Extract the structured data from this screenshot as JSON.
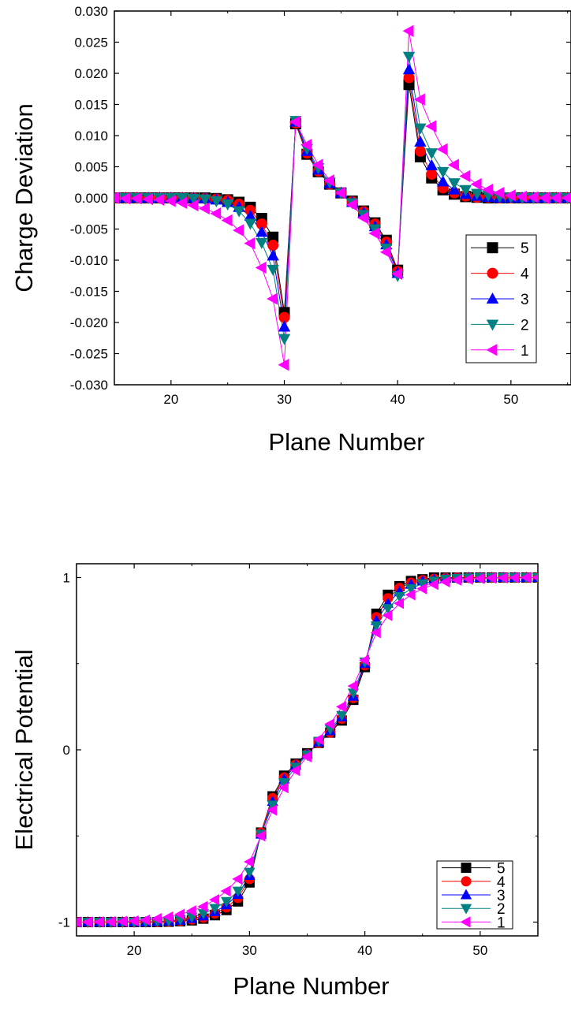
{
  "chart_data": [
    {
      "type": "line",
      "xlabel": "Plane Number",
      "ylabel": "Charge Deviation",
      "xlim": [
        15,
        55
      ],
      "ylim": [
        -0.03,
        0.03
      ],
      "xticks": [
        20,
        30,
        40,
        50
      ],
      "xtick_labels": [
        "20",
        "30",
        "40",
        "50"
      ],
      "yticks": [
        -0.03,
        -0.025,
        -0.02,
        -0.015,
        -0.01,
        -0.005,
        0,
        0.005,
        0.01,
        0.015,
        0.02,
        0.025,
        0.03
      ],
      "ytick_labels": [
        "-0.030",
        "-0.025",
        "-0.020",
        "-0.015",
        "-0.010",
        "-0.005",
        "0.000",
        "0.005",
        "0.010",
        "0.015",
        "0.020",
        "0.025",
        "0.030"
      ],
      "grid": false,
      "legend_position": "bottom-right",
      "x": [
        15,
        16,
        17,
        18,
        19,
        20,
        21,
        22,
        23,
        24,
        25,
        26,
        27,
        28,
        29,
        30,
        31,
        32,
        33,
        34,
        35,
        36,
        37,
        38,
        39,
        40,
        41,
        42,
        43,
        44,
        45,
        46,
        47,
        48,
        49,
        50,
        51,
        52,
        53,
        54,
        55
      ],
      "series": [
        {
          "name": "5",
          "color": "#000000",
          "marker": "square",
          "values": [
            0,
            0,
            0,
            0,
            0,
            0,
            0,
            0,
            0,
            -0.0001,
            -0.0003,
            -0.0007,
            -0.0015,
            -0.0033,
            -0.0063,
            -0.0184,
            0.0119,
            0.007,
            0.0042,
            0.0022,
            0.0008,
            -0.0005,
            -0.0021,
            -0.004,
            -0.0068,
            -0.0116,
            0.0182,
            0.0066,
            0.0032,
            0.0013,
            0.0006,
            0.0002,
            0.0001,
            0,
            0,
            0,
            0,
            0,
            0,
            0,
            0
          ]
        },
        {
          "name": "4",
          "color": "#ff0000",
          "marker": "circle",
          "values": [
            0,
            0,
            0,
            0,
            0,
            0,
            0,
            0,
            -0.0001,
            -0.0002,
            -0.0004,
            -0.001,
            -0.002,
            -0.0042,
            -0.0076,
            -0.0192,
            0.012,
            0.0072,
            0.0043,
            0.0022,
            0.0008,
            -0.0006,
            -0.0022,
            -0.0042,
            -0.0071,
            -0.0118,
            0.0193,
            0.0075,
            0.0038,
            0.0016,
            0.0008,
            0.0003,
            0.0001,
            0.0001,
            0,
            0,
            0,
            0,
            0,
            0,
            0
          ]
        },
        {
          "name": "3",
          "color": "#0000ff",
          "marker": "triangle-up",
          "values": [
            0,
            0,
            0,
            0,
            0,
            0,
            0,
            0,
            -0.0001,
            -0.0003,
            -0.0007,
            -0.0015,
            -0.0029,
            -0.0055,
            -0.0093,
            -0.0207,
            0.0122,
            0.0075,
            0.0045,
            0.0023,
            0.0008,
            -0.0007,
            -0.0024,
            -0.0046,
            -0.0075,
            -0.0121,
            0.0206,
            0.009,
            0.0052,
            0.0026,
            0.0013,
            0.0006,
            0.0003,
            0.0001,
            0,
            0,
            0,
            0,
            0,
            0,
            0
          ]
        },
        {
          "name": "2",
          "color": "#008080",
          "marker": "triangle-down",
          "values": [
            0,
            0,
            0,
            0,
            0,
            0,
            0,
            -0.0001,
            -0.0002,
            -0.0005,
            -0.001,
            -0.0021,
            -0.0041,
            -0.0072,
            -0.0115,
            -0.0226,
            0.0124,
            0.0079,
            0.0048,
            0.0025,
            0.0008,
            -0.0008,
            -0.0027,
            -0.005,
            -0.0081,
            -0.0125,
            0.0227,
            0.0112,
            0.0072,
            0.0042,
            0.0024,
            0.0013,
            0.0007,
            0.0004,
            0.0002,
            0.0001,
            0,
            0,
            0,
            0,
            0
          ]
        },
        {
          "name": "1",
          "color": "#ff00ff",
          "marker": "triangle-left",
          "values": [
            0,
            -0.0001,
            -0.0001,
            -0.0002,
            -0.0003,
            -0.0005,
            -0.0008,
            -0.0012,
            -0.0017,
            -0.0025,
            -0.0036,
            -0.0052,
            -0.0073,
            -0.0112,
            -0.0162,
            -0.0268,
            0.0122,
            0.0085,
            0.0053,
            0.0028,
            0.0008,
            -0.0011,
            -0.0032,
            -0.0057,
            -0.0087,
            -0.0122,
            0.0268,
            0.0158,
            0.0115,
            0.0078,
            0.0053,
            0.0035,
            0.0022,
            0.0013,
            0.0008,
            0.0004,
            0.0002,
            0.0001,
            0,
            0,
            0
          ]
        }
      ]
    },
    {
      "type": "line",
      "xlabel": "Plane Number",
      "ylabel": "Electrical Potential",
      "xlim": [
        15,
        55
      ],
      "ylim": [
        -1.08,
        1.08
      ],
      "xticks": [
        20,
        30,
        40,
        50
      ],
      "xtick_labels": [
        "20",
        "30",
        "40",
        "50"
      ],
      "yticks": [
        -1,
        0,
        1
      ],
      "ytick_labels": [
        "-1",
        "0",
        "1"
      ],
      "grid": false,
      "legend_position": "bottom-right",
      "x": [
        15,
        16,
        17,
        18,
        19,
        20,
        21,
        22,
        23,
        24,
        25,
        26,
        27,
        28,
        29,
        30,
        31,
        32,
        33,
        34,
        35,
        36,
        37,
        38,
        39,
        40,
        41,
        42,
        43,
        44,
        45,
        46,
        47,
        48,
        49,
        50,
        51,
        52,
        53,
        54,
        55
      ],
      "series": [
        {
          "name": "5",
          "color": "#000000",
          "marker": "square",
          "values": [
            -1,
            -1,
            -1,
            -1,
            -1,
            -1,
            -1,
            -1,
            -0.998,
            -0.995,
            -0.99,
            -0.98,
            -0.96,
            -0.93,
            -0.88,
            -0.77,
            -0.48,
            -0.27,
            -0.15,
            -0.08,
            -0.02,
            0.04,
            0.1,
            0.17,
            0.29,
            0.48,
            0.79,
            0.9,
            0.95,
            0.98,
            0.99,
            1,
            1,
            1,
            1,
            1,
            1,
            1,
            1,
            1,
            1
          ]
        },
        {
          "name": "4",
          "color": "#ff0000",
          "marker": "circle",
          "values": [
            -1,
            -1,
            -1,
            -1,
            -1,
            -1,
            -1,
            -1,
            -0.997,
            -0.993,
            -0.985,
            -0.975,
            -0.95,
            -0.915,
            -0.86,
            -0.75,
            -0.48,
            -0.28,
            -0.16,
            -0.085,
            -0.025,
            0.04,
            0.1,
            0.18,
            0.3,
            0.49,
            0.77,
            0.88,
            0.94,
            0.97,
            0.985,
            0.993,
            0.997,
            1,
            1,
            1,
            1,
            1,
            1,
            1,
            1
          ]
        },
        {
          "name": "3",
          "color": "#0000ff",
          "marker": "triangle-up",
          "values": [
            -1,
            -1,
            -1,
            -1,
            -1,
            -1,
            -1,
            -0.998,
            -0.995,
            -0.99,
            -0.98,
            -0.965,
            -0.94,
            -0.9,
            -0.84,
            -0.73,
            -0.49,
            -0.3,
            -0.17,
            -0.09,
            -0.025,
            0.045,
            0.11,
            0.19,
            0.31,
            0.5,
            0.75,
            0.85,
            0.92,
            0.96,
            0.98,
            0.99,
            0.995,
            0.998,
            1,
            1,
            1,
            1,
            1,
            1,
            1
          ]
        },
        {
          "name": "2",
          "color": "#008080",
          "marker": "triangle-down",
          "values": [
            -1,
            -1,
            -1,
            -1,
            -1,
            -1,
            -0.999,
            -0.997,
            -0.993,
            -0.985,
            -0.97,
            -0.95,
            -0.92,
            -0.88,
            -0.82,
            -0.71,
            -0.49,
            -0.32,
            -0.19,
            -0.1,
            -0.03,
            0.05,
            0.12,
            0.2,
            0.33,
            0.51,
            0.72,
            0.82,
            0.89,
            0.935,
            0.965,
            0.98,
            0.99,
            0.995,
            0.998,
            1,
            1,
            1,
            1,
            1,
            1
          ]
        },
        {
          "name": "1",
          "color": "#ff00ff",
          "marker": "triangle-left",
          "values": [
            -1,
            -1,
            -0.999,
            -0.998,
            -0.996,
            -0.993,
            -0.988,
            -0.98,
            -0.97,
            -0.955,
            -0.935,
            -0.91,
            -0.87,
            -0.82,
            -0.75,
            -0.65,
            -0.5,
            -0.35,
            -0.22,
            -0.12,
            -0.04,
            0.06,
            0.15,
            0.25,
            0.37,
            0.52,
            0.68,
            0.78,
            0.85,
            0.9,
            0.935,
            0.96,
            0.975,
            0.985,
            0.99,
            0.994,
            0.997,
            0.998,
            0.999,
            1,
            1
          ]
        }
      ]
    }
  ]
}
